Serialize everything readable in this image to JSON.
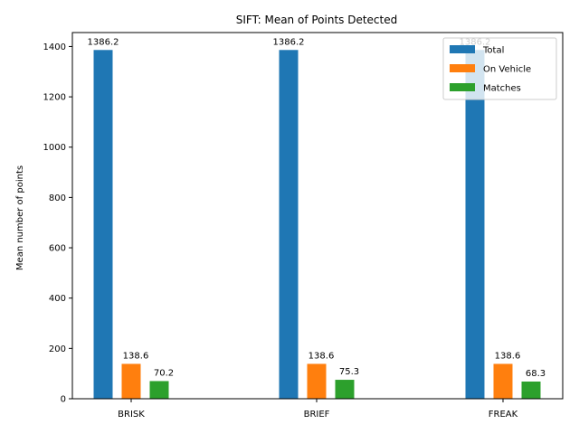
{
  "chart_data": {
    "type": "bar",
    "title": "SIFT: Mean of Points Detected",
    "xlabel": "",
    "ylabel": "Mean number of points",
    "categories": [
      "BRISK",
      "BRIEF",
      "FREAK"
    ],
    "series": [
      {
        "name": "Total",
        "values": [
          1386.2,
          1386.2,
          1386.2
        ],
        "labels": [
          "1386.2",
          "1386.2",
          "1386.2"
        ],
        "color": "#1f77b4"
      },
      {
        "name": "On Vehicle",
        "values": [
          138.6,
          138.6,
          138.6
        ],
        "labels": [
          "138.6",
          "138.6",
          "138.6"
        ],
        "color": "#ff7f0e"
      },
      {
        "name": "Matches",
        "values": [
          70.2,
          75.3,
          68.3
        ],
        "labels": [
          "70.2",
          "75.3",
          "68.3"
        ],
        "color": "#2ca02c"
      }
    ],
    "ylim": [
      0,
      1455.5
    ],
    "yticks": [
      0,
      200,
      400,
      600,
      800,
      1000,
      1200,
      1400
    ],
    "ytick_labels": [
      "0",
      "200",
      "400",
      "600",
      "800",
      "1000",
      "1200",
      "1400"
    ],
    "grid": false,
    "legend_position": "top-right"
  }
}
